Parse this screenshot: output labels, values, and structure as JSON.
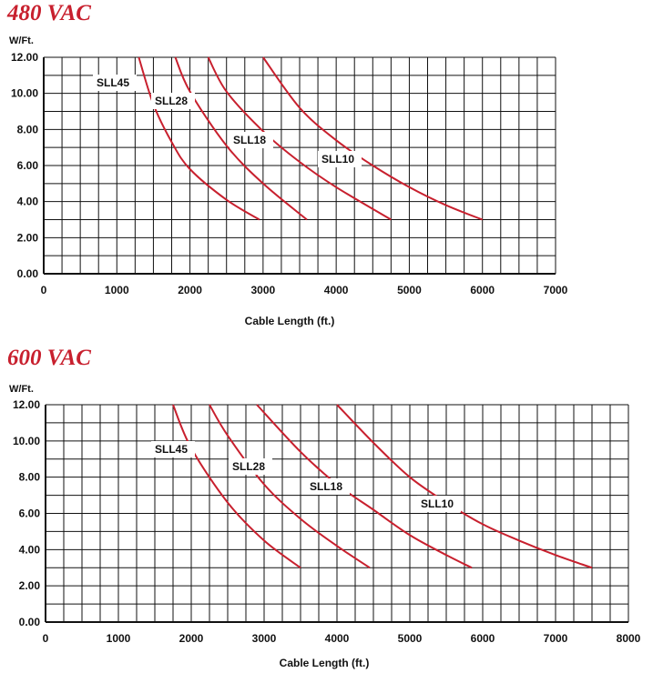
{
  "chart_data": [
    {
      "type": "line",
      "title": "480 VAC",
      "ylabel": "W/Ft.",
      "xlabel": "Cable Length (ft.)",
      "xlim": [
        0,
        7000
      ],
      "ylim": [
        0,
        12
      ],
      "x_ticks": [
        "0",
        "1000",
        "2000",
        "3000",
        "4000",
        "5000",
        "6000",
        "7000"
      ],
      "y_ticks": [
        "0.00",
        "2.00",
        "4.00",
        "6.00",
        "8.00",
        "10.00",
        "12.00"
      ],
      "grid": true,
      "series": [
        {
          "name": "SLL45",
          "x": [
            1300,
            1500,
            1750,
            2000,
            2500,
            2950
          ],
          "y": [
            12,
            9.4,
            7.3,
            5.8,
            4.1,
            3.0
          ]
        },
        {
          "name": "SLL28",
          "x": [
            1800,
            2000,
            2500,
            3000,
            3600
          ],
          "y": [
            12,
            10.1,
            7.1,
            5.0,
            3.0
          ]
        },
        {
          "name": "SLL18",
          "x": [
            2250,
            2500,
            3000,
            3500,
            4000,
            4750
          ],
          "y": [
            12,
            10.1,
            7.9,
            6.2,
            4.8,
            3.0
          ]
        },
        {
          "name": "SLL10",
          "x": [
            3000,
            3500,
            4000,
            4500,
            5000,
            5500,
            6000
          ],
          "y": [
            12,
            9.2,
            7.4,
            6.0,
            4.8,
            3.8,
            3.0
          ]
        }
      ]
    },
    {
      "type": "line",
      "title": "600 VAC",
      "ylabel": "W/Ft.",
      "xlabel": "Cable Length (ft.)",
      "xlim": [
        0,
        8000
      ],
      "ylim": [
        0,
        12
      ],
      "x_ticks": [
        "0",
        "1000",
        "2000",
        "3000",
        "4000",
        "5000",
        "6000",
        "7000",
        "8000"
      ],
      "y_ticks": [
        "0.00",
        "2.00",
        "4.00",
        "6.00",
        "8.00",
        "10.00",
        "12.00"
      ],
      "grid": true,
      "series": [
        {
          "name": "SLL45",
          "x": [
            1750,
            2000,
            2500,
            3000,
            3500
          ],
          "y": [
            12,
            9.6,
            6.6,
            4.5,
            3.0
          ]
        },
        {
          "name": "SLL28",
          "x": [
            2250,
            2500,
            3000,
            3500,
            4000,
            4450
          ],
          "y": [
            12,
            10.3,
            7.6,
            5.7,
            4.2,
            3.0
          ]
        },
        {
          "name": "SLL18",
          "x": [
            2900,
            3500,
            4000,
            4500,
            5000,
            5500,
            5850
          ],
          "y": [
            12,
            9.4,
            7.6,
            6.2,
            4.8,
            3.7,
            3.0
          ]
        },
        {
          "name": "SLL10",
          "x": [
            4000,
            4500,
            5000,
            5500,
            6000,
            6500,
            7000,
            7500
          ],
          "y": [
            12,
            9.9,
            8.0,
            6.6,
            5.4,
            4.5,
            3.7,
            3.0
          ]
        }
      ]
    }
  ]
}
